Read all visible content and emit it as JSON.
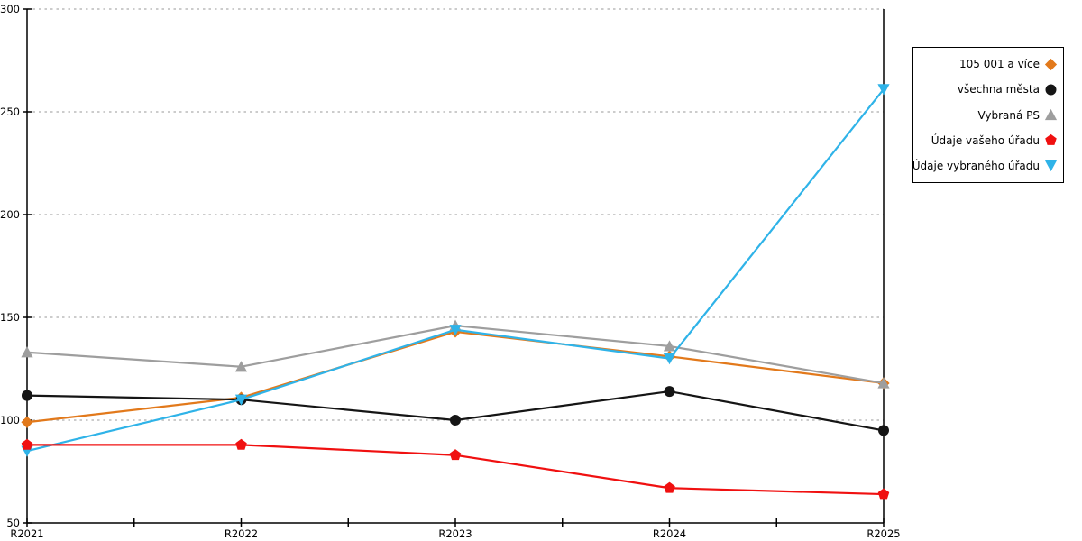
{
  "chart_data": {
    "type": "line",
    "title": "",
    "xlabel": "",
    "ylabel": "",
    "categories": [
      "R2021",
      "R2022",
      "R2023",
      "R2024",
      "R2025"
    ],
    "series": [
      {
        "name": "105 001 a více",
        "color": "#E2791B",
        "marker": "diamond",
        "values": [
          99,
          111,
          143,
          131,
          118
        ]
      },
      {
        "name": "všechna města",
        "color": "#151515",
        "marker": "circle",
        "values": [
          112,
          110,
          100,
          114,
          95
        ]
      },
      {
        "name": "Vybraná PS",
        "color": "#9E9E9E",
        "marker": "triangle-up",
        "values": [
          133,
          126,
          146,
          136,
          118
        ]
      },
      {
        "name": "Údaje vašeho úřadu",
        "color": "#F01010",
        "marker": "pentagon",
        "values": [
          88,
          88,
          83,
          67,
          64
        ]
      },
      {
        "name": "Údaje vybraného úřadu",
        "color": "#2FB3E8",
        "marker": "triangle-down",
        "values": [
          85,
          110,
          144,
          130,
          261
        ]
      }
    ],
    "ylim": [
      50,
      300
    ],
    "yticks": [
      50,
      100,
      150,
      200,
      250,
      300
    ],
    "grid": "horizontal-dotted",
    "gridline_color": "#ADADAD",
    "axis_color": "#000000",
    "legend_position": "right"
  }
}
